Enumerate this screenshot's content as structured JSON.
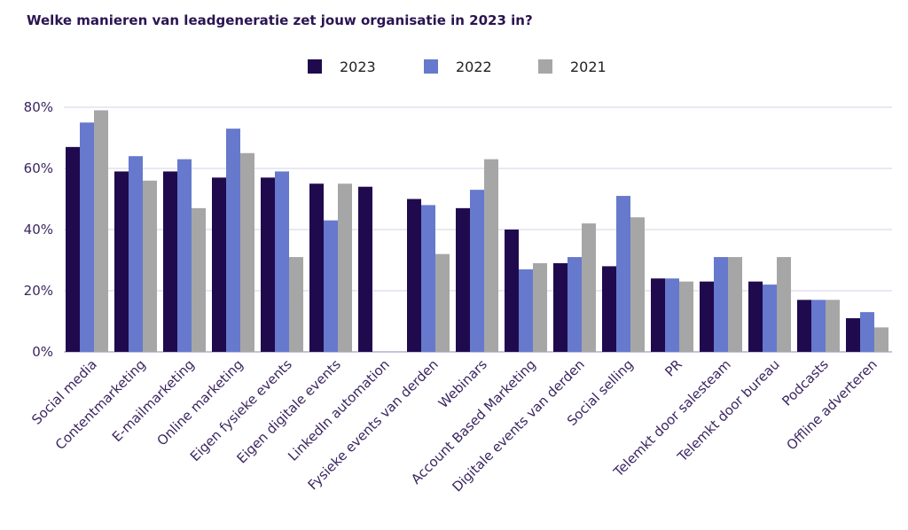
{
  "chart_data": {
    "type": "bar",
    "title": "Welke manieren van leadgeneratie zet jouw organisatie in 2023 in?",
    "xlabel": "",
    "ylabel": "",
    "ylim": [
      0,
      80
    ],
    "y_ticks": [
      0,
      20,
      40,
      60,
      80
    ],
    "y_tick_labels": [
      "0%",
      "20%",
      "40%",
      "60%",
      "80%"
    ],
    "grid": true,
    "legend_position": "top-center",
    "categories": [
      "Social media",
      "Contentmarketing",
      "E-mailmarketing",
      "Online marketing",
      "Eigen fysieke events",
      "Eigen digitale events",
      "LinkedIn automation",
      "Fysieke events van derden",
      "Webinars",
      "Account Based Marketing",
      "Digitale events van derden",
      "Social selling",
      "PR",
      "Telemkt door salesteam",
      "Telemkt door bureau",
      "Podcasts",
      "Offline adverteren"
    ],
    "series": [
      {
        "name": "2023",
        "color": "#1f0a4e",
        "values": [
          67,
          59,
          59,
          57,
          57,
          55,
          54,
          50,
          47,
          40,
          29,
          28,
          24,
          23,
          23,
          17,
          11
        ]
      },
      {
        "name": "2022",
        "color": "#6679cc",
        "values": [
          75,
          64,
          63,
          73,
          59,
          43,
          0,
          48,
          53,
          27,
          31,
          51,
          24,
          31,
          22,
          17,
          13
        ]
      },
      {
        "name": "2021",
        "color": "#a6a6a6",
        "values": [
          79,
          56,
          47,
          65,
          31,
          55,
          0,
          32,
          63,
          29,
          42,
          44,
          23,
          31,
          31,
          17,
          8
        ]
      }
    ]
  }
}
